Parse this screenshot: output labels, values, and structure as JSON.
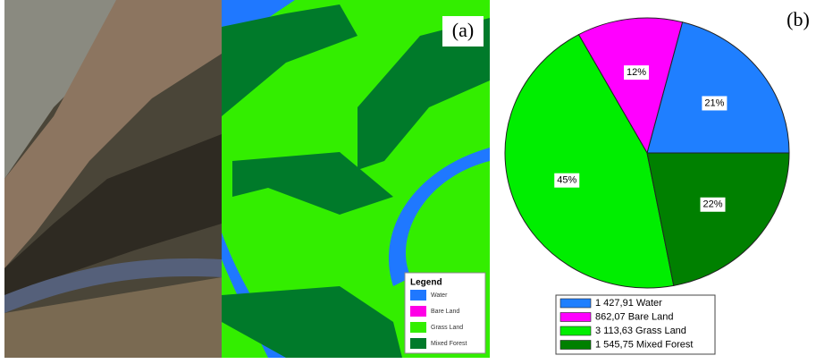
{
  "panel_a": {
    "label": "(a)",
    "legend": {
      "title": "Legend",
      "items": [
        "Water",
        "Bare Land",
        "Grass Land",
        "Mixed Forest"
      ],
      "colors": [
        "#1f78ff",
        "#ff00e6",
        "#33ee00",
        "#007a2a"
      ]
    }
  },
  "chart_data": {
    "type": "pie",
    "label": "(b)",
    "categories": [
      "1 427,91 Water",
      "862,07 Bare Land",
      "3 113,63 Grass Land",
      "1 545,75 Mixed Forest"
    ],
    "values": [
      21,
      12,
      45,
      22
    ],
    "value_labels": [
      "21%",
      "12%",
      "45%",
      "22%"
    ],
    "colors": [
      "#1f7fff",
      "#ff00ff",
      "#00ee00",
      "#008000"
    ]
  }
}
